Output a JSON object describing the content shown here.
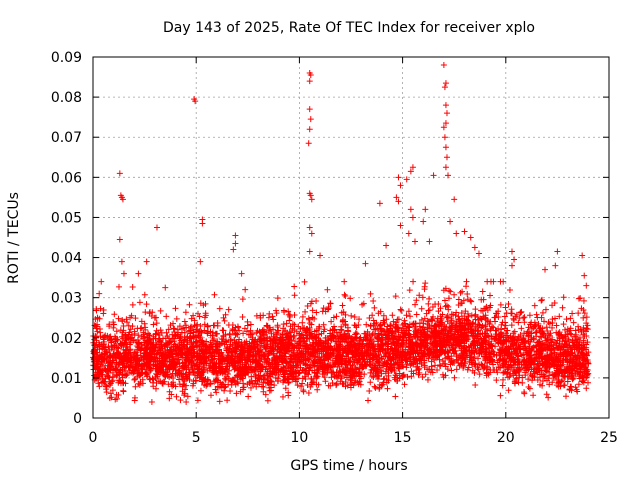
{
  "chart_data": {
    "type": "scatter",
    "title": "Day 143 of 2025, Rate Of TEC Index for receiver xplo",
    "xlabel": "GPS time / hours",
    "ylabel": "ROTI / TECUs",
    "xlim": [
      0,
      25
    ],
    "ylim": [
      0,
      0.09
    ],
    "x_ticks": [
      "0",
      "5",
      "10",
      "15",
      "20",
      "25"
    ],
    "y_ticks": [
      "0",
      "0.01",
      "0.02",
      "0.03",
      "0.04",
      "0.05",
      "0.06",
      "0.07",
      "0.08",
      "0.09"
    ],
    "grid": true,
    "marker": "+",
    "color": "#ff0000",
    "band": [
      [
        0,
        0.0145
      ],
      [
        1,
        0.0145
      ],
      [
        2,
        0.015
      ],
      [
        3,
        0.0145
      ],
      [
        4,
        0.0145
      ],
      [
        5,
        0.015
      ],
      [
        6,
        0.014
      ],
      [
        7,
        0.014
      ],
      [
        8,
        0.0145
      ],
      [
        9,
        0.015
      ],
      [
        10,
        0.0155
      ],
      [
        11,
        0.016
      ],
      [
        12,
        0.0155
      ],
      [
        13,
        0.0155
      ],
      [
        14,
        0.016
      ],
      [
        15,
        0.017
      ],
      [
        16,
        0.018
      ],
      [
        17,
        0.0185
      ],
      [
        18,
        0.019
      ],
      [
        19,
        0.018
      ],
      [
        20,
        0.0165
      ],
      [
        21,
        0.0155
      ],
      [
        22,
        0.015
      ],
      [
        23,
        0.0145
      ],
      [
        24,
        0.0145
      ]
    ],
    "outliers": [
      [
        0.3,
        0.031
      ],
      [
        0.4,
        0.034
      ],
      [
        1.3,
        0.061
      ],
      [
        1.35,
        0.0555
      ],
      [
        1.4,
        0.055
      ],
      [
        1.45,
        0.0545
      ],
      [
        1.3,
        0.0445
      ],
      [
        1.4,
        0.039
      ],
      [
        1.5,
        0.036
      ],
      [
        2.2,
        0.036
      ],
      [
        2.6,
        0.039
      ],
      [
        3.1,
        0.0475
      ],
      [
        4.9,
        0.0795
      ],
      [
        4.95,
        0.079
      ],
      [
        5.3,
        0.0495
      ],
      [
        5.3,
        0.0485
      ],
      [
        5.2,
        0.039
      ],
      [
        6.9,
        0.0455
      ],
      [
        6.9,
        0.0435
      ],
      [
        6.8,
        0.042
      ],
      [
        7.2,
        0.036
      ],
      [
        10.5,
        0.086
      ],
      [
        10.55,
        0.0855
      ],
      [
        10.5,
        0.084
      ],
      [
        10.5,
        0.077
      ],
      [
        10.55,
        0.0745
      ],
      [
        10.5,
        0.072
      ],
      [
        10.45,
        0.0685
      ],
      [
        10.5,
        0.056
      ],
      [
        10.55,
        0.0555
      ],
      [
        10.6,
        0.0545
      ],
      [
        10.5,
        0.0475
      ],
      [
        10.6,
        0.046
      ],
      [
        10.5,
        0.0415
      ],
      [
        11.0,
        0.0405
      ],
      [
        13.2,
        0.0385
      ],
      [
        13.9,
        0.0535
      ],
      [
        14.2,
        0.043
      ],
      [
        14.8,
        0.06
      ],
      [
        14.9,
        0.058
      ],
      [
        14.7,
        0.055
      ],
      [
        14.8,
        0.054
      ],
      [
        14.9,
        0.048
      ],
      [
        15.2,
        0.0595
      ],
      [
        15.4,
        0.0615
      ],
      [
        15.5,
        0.0625
      ],
      [
        15.4,
        0.052
      ],
      [
        15.5,
        0.05
      ],
      [
        15.3,
        0.046
      ],
      [
        15.6,
        0.044
      ],
      [
        16.1,
        0.052
      ],
      [
        16.0,
        0.049
      ],
      [
        16.3,
        0.044
      ],
      [
        16.5,
        0.0605
      ],
      [
        17.0,
        0.088
      ],
      [
        17.1,
        0.0835
      ],
      [
        17.05,
        0.0825
      ],
      [
        17.1,
        0.078
      ],
      [
        17.15,
        0.076
      ],
      [
        17.1,
        0.0735
      ],
      [
        17.0,
        0.0725
      ],
      [
        17.05,
        0.07
      ],
      [
        17.1,
        0.0675
      ],
      [
        17.15,
        0.065
      ],
      [
        17.1,
        0.0625
      ],
      [
        17.2,
        0.0605
      ],
      [
        17.5,
        0.0545
      ],
      [
        17.3,
        0.049
      ],
      [
        17.6,
        0.046
      ],
      [
        18.0,
        0.0465
      ],
      [
        18.3,
        0.045
      ],
      [
        18.5,
        0.0425
      ],
      [
        18.7,
        0.041
      ],
      [
        20.3,
        0.0415
      ],
      [
        20.4,
        0.0395
      ],
      [
        20.3,
        0.038
      ],
      [
        21.9,
        0.037
      ],
      [
        22.5,
        0.0415
      ],
      [
        22.4,
        0.038
      ],
      [
        23.7,
        0.0405
      ],
      [
        23.8,
        0.0355
      ],
      [
        23.9,
        0.033
      ]
    ]
  }
}
